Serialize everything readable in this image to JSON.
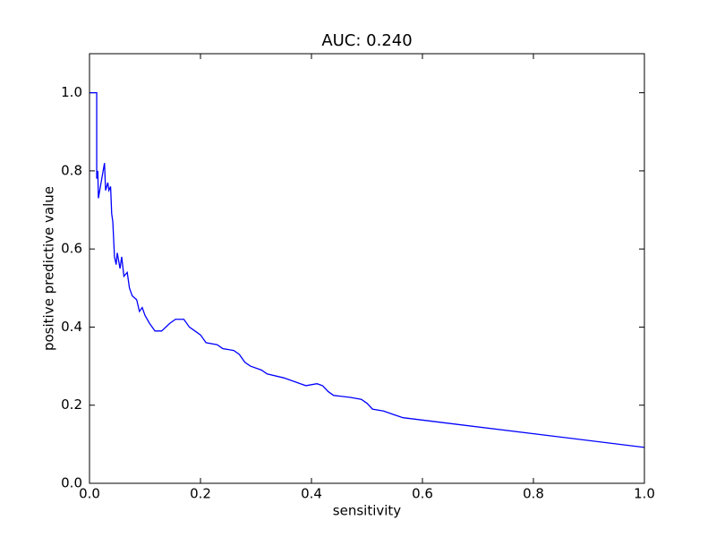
{
  "chart_data": {
    "type": "line",
    "title": "AUC: 0.240",
    "x_label": "sensitivity",
    "y_label": "positive predictive value",
    "x": [
      0,
      0.013,
      0.013,
      0.015,
      0.016,
      0.027,
      0.029,
      0.033,
      0.035,
      0.038,
      0.04,
      0.042,
      0.043,
      0.045,
      0.048,
      0.05,
      0.055,
      0.058,
      0.062,
      0.068,
      0.072,
      0.077,
      0.085,
      0.09,
      0.095,
      0.1,
      0.108,
      0.118,
      0.13,
      0.145,
      0.155,
      0.17,
      0.18,
      0.19,
      0.2,
      0.21,
      0.23,
      0.24,
      0.26,
      0.27,
      0.28,
      0.29,
      0.31,
      0.32,
      0.35,
      0.37,
      0.38,
      0.39,
      0.41,
      0.42,
      0.43,
      0.44,
      0.47,
      0.49,
      0.5,
      0.51,
      0.53,
      0.55,
      0.565,
      1.0
    ],
    "series": [
      {
        "color": "#0000ff",
        "values": [
          1.0,
          1.0,
          0.78,
          0.8,
          0.73,
          0.82,
          0.75,
          0.77,
          0.75,
          0.76,
          0.69,
          0.67,
          0.64,
          0.58,
          0.56,
          0.59,
          0.55,
          0.58,
          0.53,
          0.54,
          0.5,
          0.48,
          0.47,
          0.44,
          0.45,
          0.43,
          0.41,
          0.39,
          0.39,
          0.41,
          0.42,
          0.42,
          0.4,
          0.39,
          0.38,
          0.36,
          0.355,
          0.345,
          0.34,
          0.33,
          0.31,
          0.3,
          0.29,
          0.28,
          0.27,
          0.26,
          0.255,
          0.25,
          0.255,
          0.25,
          0.235,
          0.225,
          0.22,
          0.215,
          0.205,
          0.19,
          0.185,
          0.175,
          0.168,
          0.092
        ]
      }
    ],
    "xlim": [
      0,
      1.0
    ],
    "ylim": [
      0,
      1.1
    ],
    "xticks": [
      {
        "value": 0,
        "label": "0.0"
      },
      0.2,
      0.4,
      0.6,
      0.8,
      {
        "value": 1,
        "label": "1.0"
      }
    ],
    "yticks": [
      {
        "value": 0,
        "label": "0.0"
      },
      0.2,
      0.4,
      0.6,
      0.8,
      {
        "value": 1,
        "label": "1.0"
      }
    ]
  }
}
